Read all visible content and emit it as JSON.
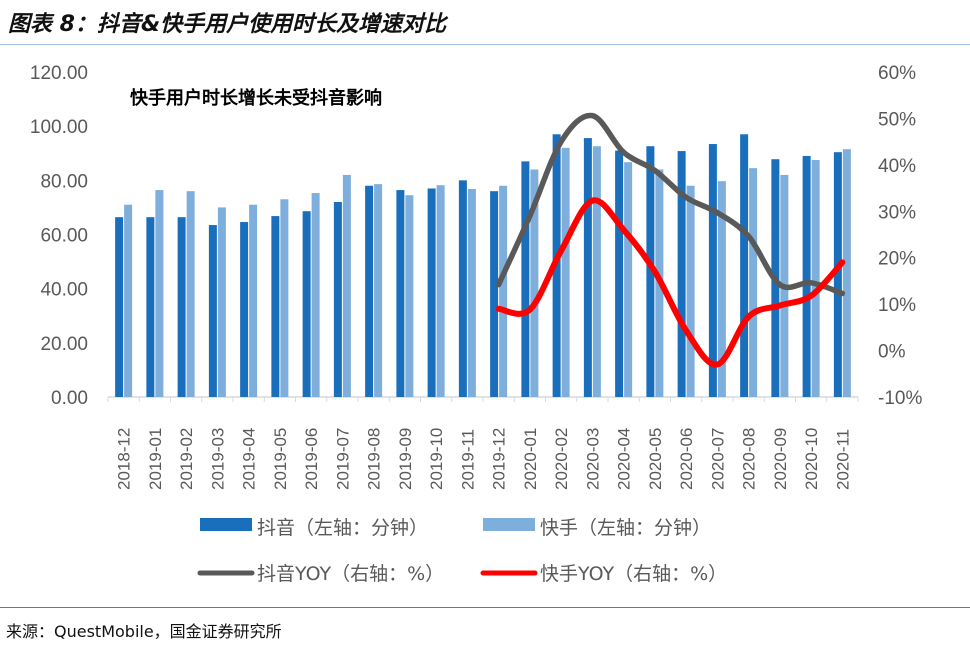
{
  "title": "图表 8：抖音&快手用户使用时长及增速对比",
  "source": "来源：QuestMobile，国金证券研究所",
  "chart_data": {
    "type": "bar+line",
    "annotation": "快手用户时长增长未受抖音影响",
    "categories": [
      "2018-12",
      "2019-01",
      "2019-02",
      "2019-03",
      "2019-04",
      "2019-05",
      "2019-06",
      "2019-07",
      "2019-08",
      "2019-09",
      "2019-10",
      "2019-11",
      "2019-12",
      "2020-01",
      "2020-02",
      "2020-03",
      "2020-04",
      "2020-05",
      "2020-06",
      "2020-07",
      "2020-08",
      "2020-09",
      "2020-10",
      "2020-11"
    ],
    "left_axis": {
      "ylim": [
        0,
        120
      ],
      "ticks": [
        "0.00",
        "20.00",
        "40.00",
        "60.00",
        "80.00",
        "100.00",
        "120.00"
      ]
    },
    "right_axis": {
      "ylim": [
        -10,
        60
      ],
      "ticks": [
        "-10%",
        "0%",
        "10%",
        "20%",
        "30%",
        "40%",
        "50%",
        "60%"
      ]
    },
    "series": [
      {
        "name": "抖音（左轴：分钟）",
        "type": "bar",
        "axis": "left",
        "color": "#1a6fbd",
        "values": [
          66.4,
          66.4,
          66.4,
          63.5,
          64.6,
          66.8,
          68.6,
          72,
          78,
          76.4,
          77,
          80,
          76,
          87,
          97,
          95.6,
          91,
          92.6,
          90.8,
          93.4,
          97,
          87.8,
          89,
          90.4
        ]
      },
      {
        "name": "快手（左轴：分钟）",
        "type": "bar",
        "axis": "left",
        "color": "#7eaedb",
        "values": [
          71,
          76.4,
          76,
          70,
          71,
          73,
          75.3,
          82,
          78.6,
          74.5,
          78.2,
          76.8,
          78,
          84,
          92,
          92.6,
          86.7,
          84,
          78,
          79.7,
          84.5,
          82,
          87.5,
          91.5
        ]
      },
      {
        "name": "抖音YOY（右轴：%）",
        "type": "line",
        "axis": "right",
        "color": "#595959",
        "values": [
          null,
          null,
          null,
          null,
          null,
          null,
          null,
          null,
          null,
          null,
          null,
          null,
          14.2,
          29,
          45,
          50.6,
          42.7,
          38.8,
          33,
          29.7,
          24.6,
          14.2,
          14.6,
          12.3
        ]
      },
      {
        "name": "快手YOY（右轴：%）",
        "type": "line",
        "axis": "right",
        "color": "#ff0000",
        "values": [
          null,
          null,
          null,
          null,
          null,
          null,
          null,
          null,
          null,
          null,
          null,
          null,
          9,
          8.8,
          21.5,
          32.3,
          26,
          17,
          4.3,
          -3,
          7.3,
          9.7,
          11.8,
          19
        ]
      }
    ]
  }
}
